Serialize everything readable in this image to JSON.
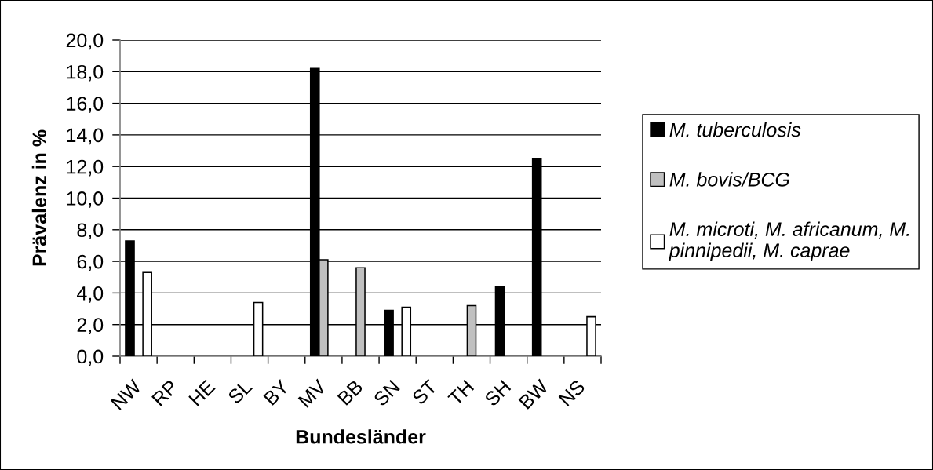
{
  "chart_data": {
    "type": "bar",
    "xlabel": "Bundesländer",
    "ylabel": "Prävalenz in %",
    "categories": [
      "NW",
      "RP",
      "HE",
      "SL",
      "BY",
      "MV",
      "BB",
      "SN",
      "ST",
      "TH",
      "SH",
      "BW",
      "NS"
    ],
    "series": [
      {
        "name": "M. tuberculosis",
        "color": "#000000",
        "values": [
          7.3,
          null,
          null,
          null,
          null,
          18.2,
          null,
          2.9,
          null,
          null,
          4.4,
          12.5,
          null
        ]
      },
      {
        "name": "M. bovis/BCG",
        "color": "#c0c0c0",
        "values": [
          null,
          null,
          null,
          null,
          null,
          6.1,
          5.6,
          null,
          null,
          3.2,
          null,
          null,
          null
        ]
      },
      {
        "name": "M. microti, M. africanum, M. pinnipedii, M. caprae",
        "color": "#ffffff",
        "values": [
          5.3,
          null,
          null,
          3.4,
          null,
          null,
          null,
          3.1,
          null,
          null,
          null,
          null,
          2.5
        ]
      }
    ],
    "ylim": [
      0,
      20
    ],
    "yticks": [
      {
        "value": 0,
        "label": "0,0"
      },
      {
        "value": 2,
        "label": "2,0"
      },
      {
        "value": 4,
        "label": "4,0"
      },
      {
        "value": 6,
        "label": "6,0"
      },
      {
        "value": 8,
        "label": "8,0"
      },
      {
        "value": 10,
        "label": "10,0"
      },
      {
        "value": 12,
        "label": "12,0"
      },
      {
        "value": 14,
        "label": "14,0"
      },
      {
        "value": 16,
        "label": "16,0"
      },
      {
        "value": 18,
        "label": "18,0"
      },
      {
        "value": 20,
        "label": "20,0"
      }
    ],
    "grid": "y",
    "legend": "right"
  }
}
